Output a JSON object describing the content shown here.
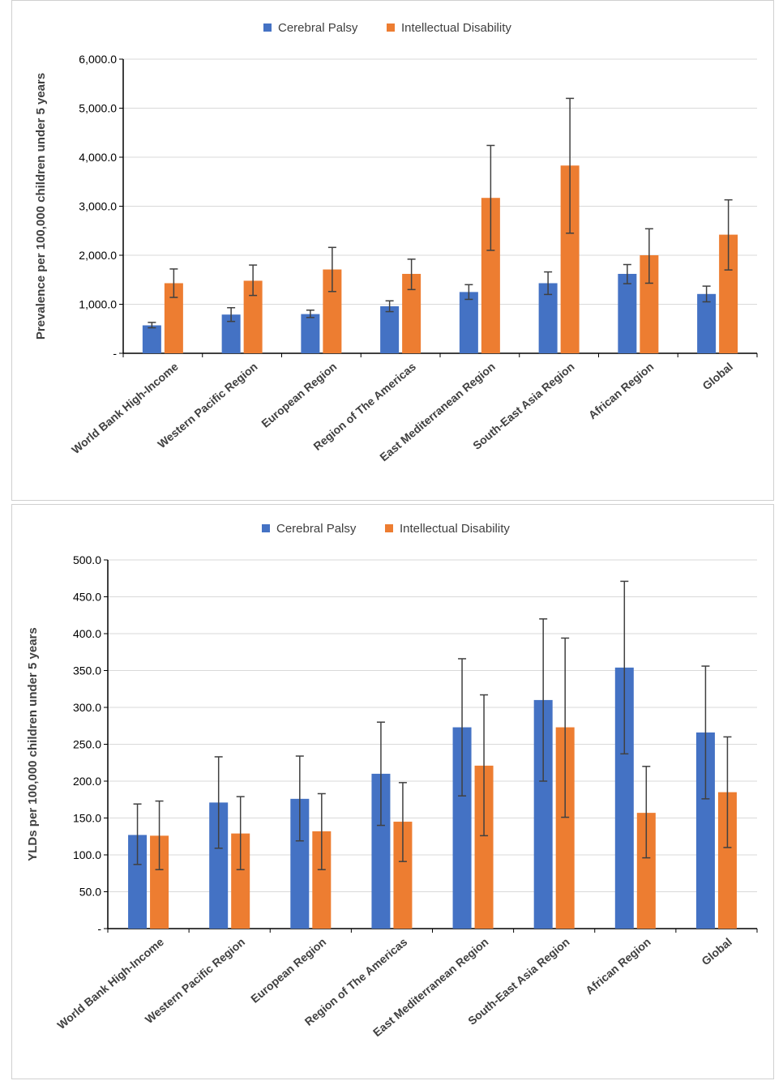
{
  "chart_data": [
    {
      "type": "bar",
      "ylabel": "Prevalence per 100,000 children under 5 years",
      "xlabel": "",
      "ylim": [
        0,
        6000
      ],
      "ytick_values": [
        0,
        1000,
        2000,
        3000,
        4000,
        5000,
        6000
      ],
      "ytick_labels": [
        "-",
        "1,000.0",
        "2,000.0",
        "3,000.0",
        "4,000.0",
        "5,000.0",
        "6,000.0"
      ],
      "grid": true,
      "legend_position": "top-center",
      "categories": [
        "World Bank High-Income",
        "Western Pacific Region",
        "European Region",
        "Region of The Americas",
        "East Mediterranean Region",
        "South-East Asia Region",
        "African Region",
        "Global"
      ],
      "series": [
        {
          "name": "Cerebral Palsy",
          "color": "#4472C4",
          "values": [
            570,
            790,
            800,
            960,
            1250,
            1430,
            1620,
            1210
          ],
          "err_low": [
            520,
            650,
            730,
            850,
            1100,
            1200,
            1420,
            1050
          ],
          "err_high": [
            630,
            930,
            880,
            1070,
            1400,
            1660,
            1810,
            1370
          ]
        },
        {
          "name": "Intellectual Disability",
          "color": "#ED7D31",
          "values": [
            1430,
            1480,
            1710,
            1620,
            3170,
            3830,
            2000,
            2420
          ],
          "err_low": [
            1140,
            1180,
            1260,
            1300,
            2100,
            2450,
            1430,
            1700
          ],
          "err_high": [
            1720,
            1800,
            2160,
            1920,
            4240,
            5200,
            2540,
            3130
          ]
        }
      ]
    },
    {
      "type": "bar",
      "ylabel": "YLDs per 100,000 children under 5 years",
      "xlabel": "",
      "ylim": [
        0,
        500
      ],
      "ytick_values": [
        0,
        50,
        100,
        150,
        200,
        250,
        300,
        350,
        400,
        450,
        500
      ],
      "ytick_labels": [
        "-",
        "50.0",
        "100.0",
        "150.0",
        "200.0",
        "250.0",
        "300.0",
        "350.0",
        "400.0",
        "450.0",
        "500.0"
      ],
      "grid": true,
      "legend_position": "top-center",
      "categories": [
        "World Bank High-Income",
        "Western Pacific Region",
        "European Region",
        "Region of The Americas",
        "East Mediterranean Region",
        "South-East Asia Region",
        "African Region",
        "Global"
      ],
      "series": [
        {
          "name": "Cerebral Palsy",
          "color": "#4472C4",
          "values": [
            127,
            171,
            176,
            210,
            273,
            310,
            354,
            266
          ],
          "err_low": [
            87,
            109,
            119,
            140,
            180,
            200,
            237,
            176
          ],
          "err_high": [
            169,
            233,
            234,
            280,
            366,
            420,
            471,
            356
          ]
        },
        {
          "name": "Intellectual Disability",
          "color": "#ED7D31",
          "values": [
            126,
            129,
            132,
            145,
            221,
            273,
            157,
            185
          ],
          "err_low": [
            80,
            80,
            80,
            91,
            126,
            151,
            96,
            110
          ],
          "err_high": [
            173,
            179,
            183,
            198,
            317,
            394,
            220,
            260
          ]
        }
      ]
    }
  ]
}
